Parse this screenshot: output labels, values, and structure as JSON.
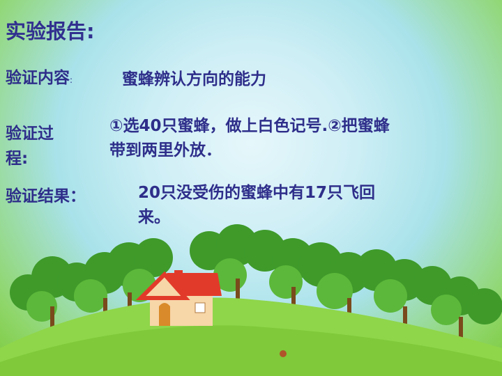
{
  "slide": {
    "title": "实验报告:",
    "content_label": "验证内容",
    "content_colon": ":",
    "content_text": "蜜蜂辨认方向的能力",
    "process_label_line1": "验证过",
    "process_label_line2": "程:",
    "process_text_line1": "①选40只蜜蜂，做上白色记号.②把蜜蜂",
    "process_text_line2": "带到两里外放．",
    "result_label": "验证结果：",
    "result_text_line1": "20只没受伤的蜜蜂中有17只飞回",
    "result_text_line2": "来。"
  },
  "colors": {
    "text": "#2e2e8a",
    "grass": "#8fd64a",
    "tree": "#3f9a2a",
    "roof": "#e23a2a",
    "wall": "#f7d6a8"
  }
}
